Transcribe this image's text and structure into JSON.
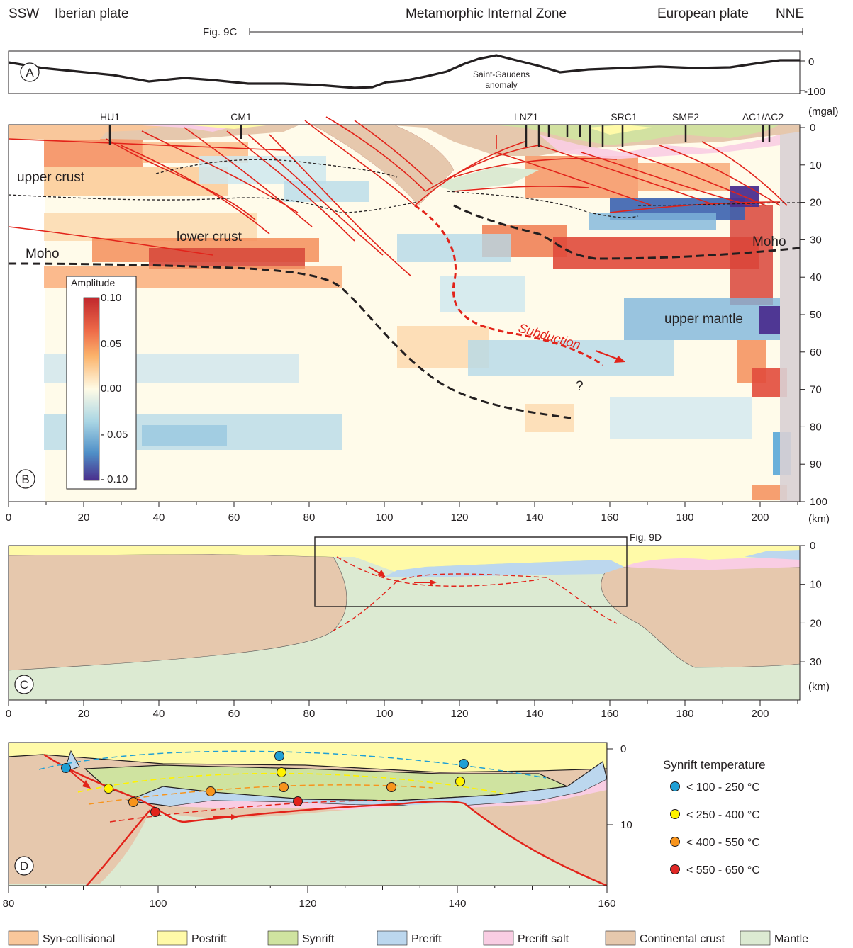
{
  "header": {
    "ssw": "SSW",
    "iberian": "Iberian plate",
    "internal_zone": "Metamorphic Internal Zone",
    "european": "European plate",
    "nne": "NNE",
    "fig9c": "Fig. 9C"
  },
  "panel_a": {
    "label": "A",
    "anomaly": [
      "Saint-Gaudens",
      "anomaly"
    ],
    "ticks": [
      "0",
      "-100"
    ],
    "unit": "(mgal)"
  },
  "panel_b": {
    "label": "B",
    "stations": [
      "HU1",
      "CM1",
      "LNZ1",
      "SRC1",
      "SME2",
      "AC1/AC2"
    ],
    "labels": {
      "upper_crust": "upper crust",
      "lower_crust": "lower crust",
      "moho_left": "Moho",
      "moho_right": "Moho",
      "upper_mantle": "upper mantle",
      "subduction": "Subduction",
      "question": "?"
    },
    "depth_ticks": [
      "0",
      "10",
      "20",
      "30",
      "40",
      "50",
      "60",
      "70",
      "80",
      "90",
      "100"
    ],
    "x_ticks": [
      "0",
      "20",
      "40",
      "60",
      "80",
      "100",
      "120",
      "140",
      "160",
      "180",
      "200"
    ],
    "x_unit": "(km)",
    "colorbar": {
      "title": "Amplitude",
      "ticks": [
        "0.10",
        "0.05",
        "0.00",
        "- 0.05",
        "- 0.10"
      ]
    }
  },
  "panel_c": {
    "label": "C",
    "fig9d": "Fig. 9D",
    "depth_ticks": [
      "0",
      "10",
      "20",
      "30"
    ],
    "depth_unit": "(km)",
    "x_ticks": [
      "0",
      "20",
      "40",
      "60",
      "80",
      "100",
      "120",
      "140",
      "160",
      "180",
      "200"
    ]
  },
  "panel_d": {
    "label": "D",
    "depth_ticks": [
      "0",
      "10"
    ],
    "x_ticks": [
      "80",
      "100",
      "120",
      "140",
      "160"
    ],
    "legend_title": "Synrift temperature",
    "temps": [
      {
        "label": "< 100 - 250 °C",
        "color": "#1f9fd5"
      },
      {
        "label": "< 250 - 400 °C",
        "color": "#fff200"
      },
      {
        "label": "< 400 - 550 °C",
        "color": "#f7941d"
      },
      {
        "label": "< 550 - 650 °C",
        "color": "#e02826"
      }
    ]
  },
  "legend": [
    {
      "label": "Syn-collisional",
      "color": "#f9c79b"
    },
    {
      "label": "Postrift",
      "color": "#fffaa8"
    },
    {
      "label": "Synrift",
      "color": "#cfe3a0"
    },
    {
      "label": "Prerift",
      "color": "#bcd7ee"
    },
    {
      "label": "Prerift salt",
      "color": "#f9cde3"
    },
    {
      "label": "Continental crust",
      "color": "#e6c8ad"
    },
    {
      "label": "Mantle",
      "color": "#dcead2"
    }
  ]
}
